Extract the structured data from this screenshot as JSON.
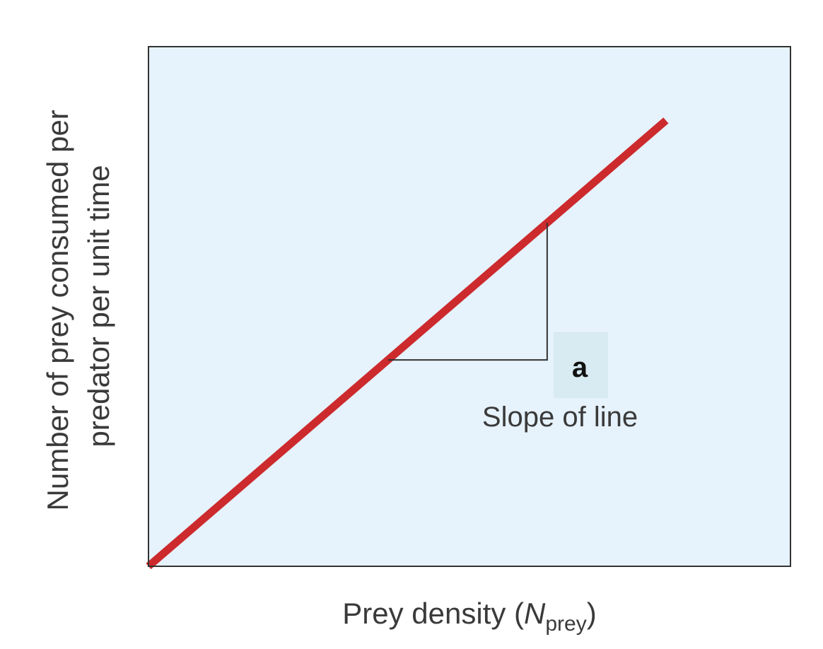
{
  "chart_data": {
    "type": "line",
    "xlabel": "Prey density (",
    "xlabel_var": "N",
    "xlabel_sub": "prey",
    "xlabel_close": ")",
    "ylabel_line1": "Number of prey consumed per",
    "ylabel_line2": "predator per unit time",
    "xlim": [
      0,
      1
    ],
    "ylim": [
      0,
      1
    ],
    "series": [
      {
        "x": [
          0,
          0.806
        ],
        "y": [
          0,
          0.858
        ]
      }
    ],
    "slope_triangle": {
      "x_start": 0.373,
      "x_end": 0.621,
      "label": "Slope of line",
      "symbol": "a"
    },
    "grid": false,
    "legend": "none"
  },
  "colors": {
    "plot_background": "#e6f2fc",
    "line": "#cc2a2d",
    "frame": "#333333",
    "triangle": "#333333",
    "symbol_background": "#d8eaf2"
  }
}
